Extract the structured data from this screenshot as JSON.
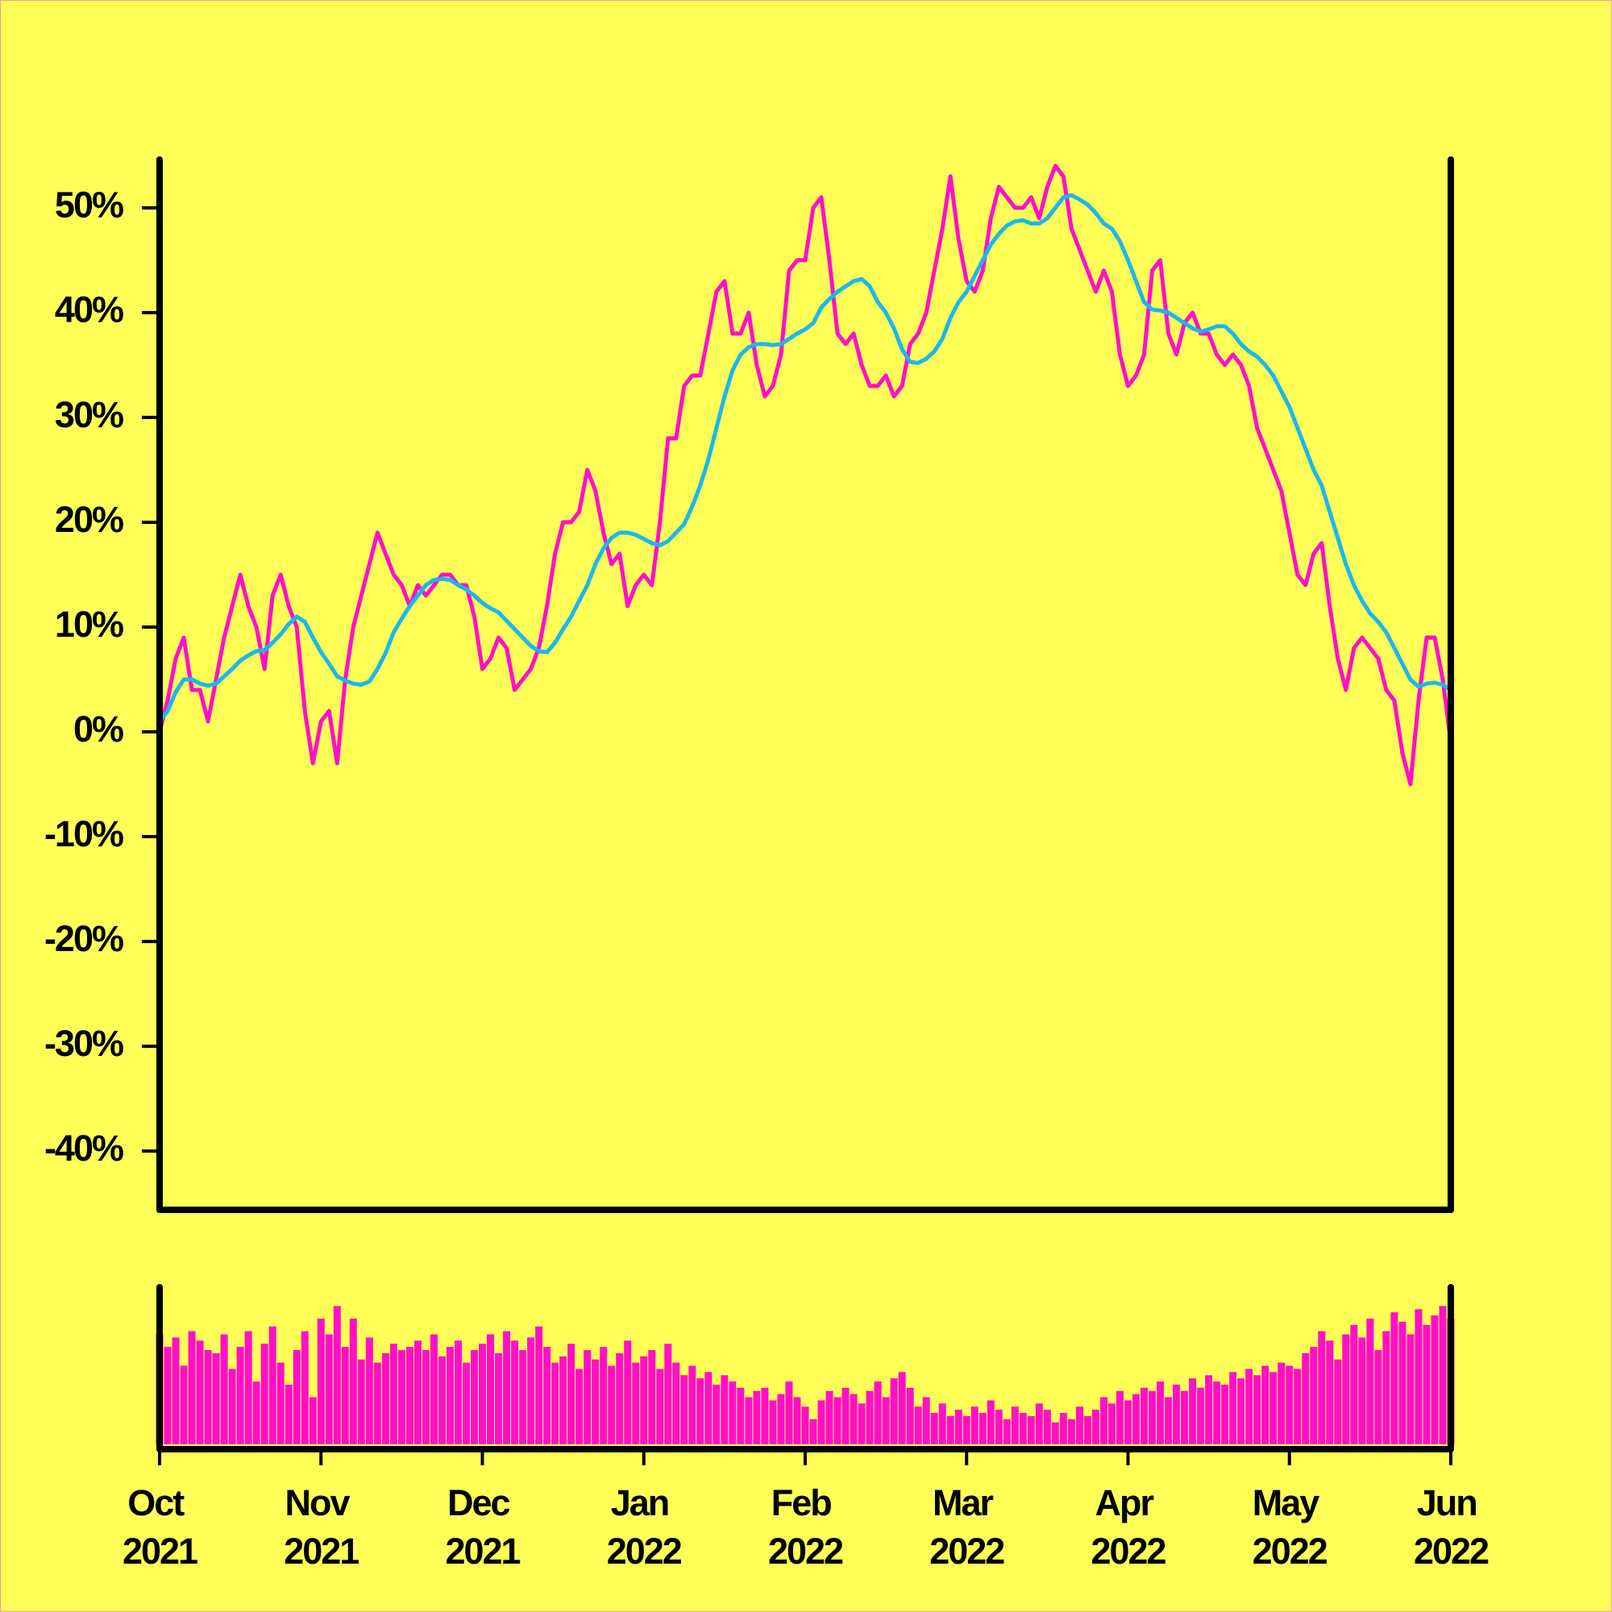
{
  "chart_data": {
    "type": "line",
    "x": [
      0,
      0.05,
      0.1,
      0.15,
      0.2,
      0.25,
      0.3,
      0.35,
      0.4,
      0.45,
      0.5,
      0.55,
      0.6,
      0.65,
      0.7,
      0.75,
      0.8,
      0.85,
      0.9,
      0.95,
      1,
      1.05,
      1.1,
      1.15,
      1.2,
      1.25,
      1.3,
      1.35,
      1.4,
      1.45,
      1.5,
      1.55,
      1.6,
      1.65,
      1.7,
      1.75,
      1.8,
      1.85,
      1.9,
      1.95,
      2,
      2.05,
      2.1,
      2.15,
      2.2,
      2.25,
      2.3,
      2.35,
      2.4,
      2.45,
      2.5,
      2.55,
      2.6,
      2.65,
      2.7,
      2.75,
      2.8,
      2.85,
      2.9,
      2.95,
      3,
      3.05,
      3.1,
      3.15,
      3.2,
      3.25,
      3.3,
      3.35,
      3.4,
      3.45,
      3.5,
      3.55,
      3.6,
      3.65,
      3.7,
      3.75,
      3.8,
      3.85,
      3.9,
      3.95,
      4,
      4.05,
      4.1,
      4.15,
      4.2,
      4.25,
      4.3,
      4.35,
      4.4,
      4.45,
      4.5,
      4.55,
      4.6,
      4.65,
      4.7,
      4.75,
      4.8,
      4.85,
      4.9,
      4.95,
      5,
      5.05,
      5.1,
      5.15,
      5.2,
      5.25,
      5.3,
      5.35,
      5.4,
      5.45,
      5.5,
      5.55,
      5.6,
      5.65,
      5.7,
      5.75,
      5.8,
      5.85,
      5.9,
      5.95,
      6,
      6.05,
      6.1,
      6.15,
      6.2,
      6.25,
      6.3,
      6.35,
      6.4,
      6.45,
      6.5,
      6.55,
      6.6,
      6.65,
      6.7,
      6.75,
      6.8,
      6.85,
      6.9,
      6.95,
      7,
      7.05,
      7.1,
      7.15,
      7.2,
      7.25,
      7.3,
      7.35,
      7.4,
      7.45,
      7.5,
      7.55,
      7.6,
      7.65,
      7.7,
      7.75,
      7.8,
      7.85,
      7.9,
      7.95,
      8
    ],
    "series": [
      {
        "color": "#ff0fc8",
        "values": [
          0,
          3,
          7,
          9,
          4,
          4,
          1,
          5,
          9,
          12,
          15,
          12,
          10,
          6,
          13,
          15,
          12,
          10,
          2,
          -3,
          1,
          2,
          -3,
          5,
          10,
          13,
          16,
          19,
          17,
          15,
          14,
          12,
          14,
          13,
          14,
          15,
          15,
          14,
          14,
          11,
          6,
          7,
          9,
          8,
          4,
          5,
          6,
          8,
          12,
          17,
          20,
          20,
          21,
          25,
          23,
          19,
          16,
          17,
          12,
          14,
          15,
          14,
          20,
          28,
          28,
          33,
          34,
          34,
          38,
          42,
          43,
          38,
          38,
          40,
          35,
          32,
          33,
          36,
          44,
          45,
          45,
          50,
          51,
          45,
          38,
          37,
          38,
          35,
          33,
          33,
          34,
          32,
          33,
          37,
          38,
          40,
          44,
          48,
          53,
          47,
          43,
          42,
          44,
          49,
          52,
          51,
          50,
          50,
          51,
          49,
          52,
          54,
          53,
          48,
          46,
          44,
          42,
          44,
          42,
          36,
          33,
          34,
          36,
          44,
          45,
          38,
          36,
          39,
          40,
          38,
          38,
          36,
          35,
          36,
          35,
          33,
          29,
          27,
          25,
          23,
          19,
          15,
          14,
          17,
          18,
          12,
          7,
          4,
          8,
          9,
          8,
          7,
          4,
          3,
          -2,
          -5,
          3,
          9,
          9,
          5,
          -1
        ]
      },
      {
        "color": "#1ab8ec",
        "values": [
          1,
          2,
          3.8,
          5,
          5,
          4.6,
          4.4,
          4.6,
          5.3,
          6,
          6.8,
          7.3,
          7.7,
          7.8,
          8.5,
          9.3,
          10.3,
          11,
          10.5,
          9,
          7.6,
          6.5,
          5.3,
          4.9,
          4.6,
          4.5,
          4.8,
          6,
          7.5,
          9.5,
          10.8,
          12,
          13,
          14,
          14.5,
          14.6,
          14.5,
          14,
          13.6,
          13,
          12.3,
          11.8,
          11.4,
          10.6,
          9.8,
          9,
          8.2,
          7.7,
          7.6,
          8.5,
          9.8,
          11,
          12.5,
          14,
          16,
          17.5,
          18.5,
          19,
          19,
          18.8,
          18.4,
          18,
          17.8,
          18.2,
          19,
          19.8,
          21.5,
          23.5,
          26,
          29,
          32,
          34.5,
          36,
          36.7,
          37,
          37,
          36.9,
          37,
          37.5,
          38,
          38.4,
          39,
          40.5,
          41.3,
          42,
          42.5,
          43,
          43.2,
          42.5,
          41,
          40,
          38.5,
          36.5,
          35.3,
          35.2,
          35.6,
          36.3,
          37.5,
          39.5,
          41,
          42,
          43.5,
          45,
          46.5,
          47.5,
          48.3,
          48.7,
          48.8,
          48.5,
          48.5,
          49,
          50,
          51,
          51.2,
          50.8,
          50.3,
          49.5,
          48.5,
          48,
          46.8,
          45,
          43,
          41,
          40.3,
          40.2,
          40,
          39.5,
          39,
          38.5,
          38.2,
          38.4,
          38.7,
          38.7,
          38,
          37,
          36.3,
          35.8,
          35,
          34,
          32.5,
          31,
          29,
          27,
          25,
          23.5,
          21,
          18.5,
          16,
          14,
          12.5,
          11.3,
          10.5,
          9.5,
          8,
          6.5,
          5,
          4.3,
          4.6,
          4.7,
          4.5,
          4
        ]
      },
      {
        "type": "bar",
        "axis": "y2",
        "color": "#ff0fc8",
        "values": [
          70,
          62,
          68,
          50,
          72,
          66,
          60,
          58,
          70,
          48,
          62,
          72,
          40,
          64,
          75,
          52,
          38,
          60,
          72,
          30,
          80,
          70,
          88,
          62,
          80,
          54,
          68,
          52,
          58,
          64,
          60,
          62,
          66,
          60,
          70,
          56,
          62,
          66,
          52,
          60,
          64,
          70,
          58,
          72,
          66,
          60,
          68,
          75,
          62,
          52,
          56,
          64,
          48,
          60,
          54,
          62,
          50,
          58,
          66,
          52,
          56,
          60,
          48,
          64,
          52,
          44,
          50,
          42,
          46,
          38,
          44,
          40,
          36,
          30,
          34,
          36,
          28,
          32,
          40,
          30,
          24,
          16,
          28,
          34,
          30,
          36,
          32,
          26,
          34,
          40,
          30,
          42,
          46,
          36,
          24,
          30,
          20,
          26,
          18,
          22,
          18,
          24,
          20,
          28,
          22,
          16,
          24,
          20,
          18,
          26,
          22,
          14,
          20,
          16,
          24,
          18,
          22,
          30,
          26,
          34,
          28,
          32,
          36,
          34,
          40,
          30,
          38,
          34,
          42,
          36,
          44,
          40,
          38,
          46,
          42,
          48,
          44,
          50,
          46,
          52,
          50,
          48,
          58,
          62,
          72,
          66,
          54,
          70,
          76,
          68,
          80,
          60,
          72,
          84,
          78,
          70,
          86,
          76,
          82,
          88,
          80
        ]
      }
    ],
    "xlim": [
      0,
      8
    ],
    "xticks": [
      {
        "value": 0,
        "label": "Oct 2021"
      },
      {
        "value": 1,
        "label": "Nov 2021"
      },
      {
        "value": 2,
        "label": "Dec 2021"
      },
      {
        "value": 3,
        "label": "Jan 2022"
      },
      {
        "value": 4,
        "label": "Feb 2022"
      },
      {
        "value": 5,
        "label": "Mar 2022"
      },
      {
        "value": 6,
        "label": "Apr 2022"
      },
      {
        "value": 7,
        "label": "May 2022"
      },
      {
        "value": 8,
        "label": "Jun 2022"
      }
    ],
    "ylim": [
      -45.6,
      54.6
    ],
    "yticks": [
      {
        "value": -40,
        "label": "-40%"
      },
      {
        "value": -30,
        "label": "-30%"
      },
      {
        "value": -20,
        "label": "-20%"
      },
      {
        "value": -10,
        "label": "-10%"
      },
      {
        "value": 0,
        "label": "0%"
      },
      {
        "value": 10,
        "label": "10%"
      },
      {
        "value": 20,
        "label": "20%"
      },
      {
        "value": 30,
        "label": "30%"
      },
      {
        "value": 40,
        "label": "40%"
      },
      {
        "value": 50,
        "label": "50%"
      }
    ],
    "y2lim": [
      0,
      100
    ]
  }
}
